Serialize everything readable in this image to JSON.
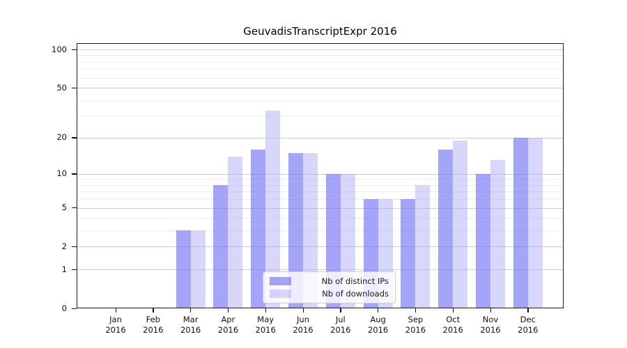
{
  "figure": {
    "title": "GeuvadisTranscriptExpr 2016"
  },
  "chart_data": {
    "type": "bar",
    "title": "GeuvadisTranscriptExpr 2016",
    "xlabel": "",
    "ylabel": "",
    "categories": [
      "Jan",
      "Feb",
      "Mar",
      "Apr",
      "May",
      "Jun",
      "Jul",
      "Aug",
      "Sep",
      "Oct",
      "Nov",
      "Dec"
    ],
    "category_year": "2016",
    "series": [
      {
        "name": "Nb of distinct IPs",
        "color": "rgba(108,108,243,0.62)",
        "values": [
          0,
          0,
          3,
          8,
          16,
          15,
          10,
          6,
          6,
          16,
          10,
          20
        ]
      },
      {
        "name": "Nb of downloads",
        "color": "rgba(160,160,248,0.42)",
        "values": [
          0,
          0,
          3,
          14,
          33,
          15,
          10,
          6,
          8,
          19,
          13,
          20
        ]
      }
    ],
    "yscale": "log1p",
    "ylim": [
      0,
      112
    ],
    "yticks": [
      0,
      1,
      2,
      5,
      10,
      20,
      50,
      100
    ],
    "minor_gridlines": [
      3,
      4,
      6,
      7,
      8,
      9,
      30,
      40,
      60,
      70,
      80,
      90
    ],
    "grid": true,
    "legend": {
      "position": "lower-center",
      "entries": [
        "Nb of distinct IPs",
        "Nb of downloads"
      ]
    }
  }
}
